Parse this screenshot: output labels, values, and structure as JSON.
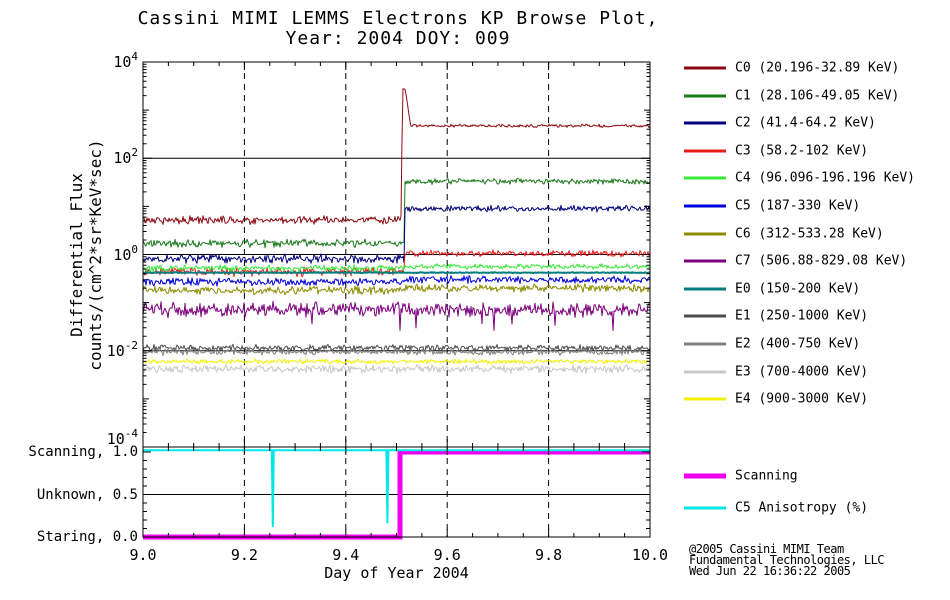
{
  "title": {
    "line1": "Cassini MIMI LEMMS Electrons KP Browse Plot,",
    "line2": "Year: 2004 DOY: 009"
  },
  "axes": {
    "y_label_line1": "Differential Flux",
    "y_label_line2": "counts/(cm^2*sr*KeV*sec)",
    "x_label": "Day of Year 2004",
    "x_ticks": [
      "9.0",
      "9.2",
      "9.4",
      "9.6",
      "9.8",
      "10.0"
    ],
    "y_tick_exponents": [
      4,
      2,
      0,
      -2,
      -4
    ],
    "mode_labels": [
      {
        "text": "Scanning, 1.0",
        "value": 1.0
      },
      {
        "text": "Unknown, 0.5",
        "value": 0.5
      },
      {
        "text": "Staring, 0.0",
        "value": 0.0
      }
    ]
  },
  "legend": {
    "items": [
      {
        "name": "C0",
        "label": "C0 (20.196-32.89 KeV)",
        "color": "#8B0A12"
      },
      {
        "name": "C1",
        "label": "C1 (28.106-49.05 KeV)",
        "color": "#1B7A1B"
      },
      {
        "name": "C2",
        "label": "C2 (41.4-64.2 KeV)",
        "color": "#00007D"
      },
      {
        "name": "C3",
        "label": "C3 (58.2-102 KeV)",
        "color": "#E81C1C"
      },
      {
        "name": "C4",
        "label": "C4 (96.096-196.196 KeV)",
        "color": "#37E837"
      },
      {
        "name": "C5",
        "label": "C5 (187-330 KeV)",
        "color": "#0000DD"
      },
      {
        "name": "C6",
        "label": "C6 (312-533.28 KeV)",
        "color": "#8C8C00"
      },
      {
        "name": "C7",
        "label": "C7 (506.88-829.08 KeV)",
        "color": "#7D007D"
      },
      {
        "name": "E0",
        "label": "E0 (150-200 KeV)",
        "color": "#007D7D"
      },
      {
        "name": "E1",
        "label": "E1 (250-1000 KeV)",
        "color": "#4D4D4D"
      },
      {
        "name": "E2",
        "label": "E2 (400-750 KeV)",
        "color": "#808080"
      },
      {
        "name": "E3",
        "label": "E3 (700-4000 KeV)",
        "color": "#C8C8C8"
      },
      {
        "name": "E4",
        "label": "E4 (900-3000 KeV)",
        "color": "#F2F200"
      }
    ]
  },
  "mode_legend": {
    "items": [
      {
        "name": "scanning",
        "label": "Scanning",
        "color": "#EE00EE",
        "thickness": 5
      },
      {
        "name": "c5-anisotropy",
        "label": "C5 Anisotropy (%)",
        "color": "#00E8E8",
        "thickness": 3
      }
    ]
  },
  "credit": {
    "line1": "@2005 Cassini MIMI Team",
    "line2": "Fundamental Technologies, LLC",
    "line3": "Wed Jun 22 16:36:22 2005"
  },
  "chart_data": {
    "type": "line",
    "title": "Cassini MIMI LEMMS Electrons KP Browse Plot, Year: 2004 DOY: 009",
    "xlabel": "Day of Year 2004",
    "x_range": [
      9.0,
      10.0
    ],
    "x_major_ticks": [
      9.0,
      9.2,
      9.4,
      9.6,
      9.8,
      10.0
    ],
    "x_minor_tick_step": 0.05,
    "grid_v_dashed": [
      9.2,
      9.4,
      9.6,
      9.8
    ],
    "panels": [
      {
        "name": "flux",
        "ylabel": "Differential Flux counts/(cm^2*sr*KeV*sec)",
        "y_scale": "log",
        "y_range": [
          0.0001,
          10000.0
        ],
        "y_labeled_decades": [
          4,
          2,
          0,
          -2,
          -4
        ],
        "grid_h_decades": [
          2,
          0,
          -2
        ],
        "event_step_x": 9.515,
        "series": [
          {
            "name": "C0",
            "energy_kev": "20.196-32.89",
            "color": "#8B0A12",
            "level_before": 5.2,
            "level_after": 470,
            "step_x": 9.515,
            "noise_dex": 0.06,
            "noise_dex_after": 0.025,
            "spike": {
              "x_rise": 9.509,
              "x_peak_start": 9.512,
              "x_peak_end": 9.517,
              "x_end": 9.528,
              "peak": 2700
            }
          },
          {
            "name": "C1",
            "energy_kev": "28.106-49.05",
            "color": "#1B7A1B",
            "level_before": 1.7,
            "level_after": 33,
            "step_x": 9.515,
            "noise_dex": 0.06,
            "noise_dex_after": 0.045
          },
          {
            "name": "C2",
            "energy_kev": "41.4-64.2",
            "color": "#00007D",
            "level_before": 0.82,
            "level_after": 9.0,
            "step_x": 9.515,
            "noise_dex": 0.07,
            "noise_dex_after": 0.045
          },
          {
            "name": "C3",
            "energy_kev": "58.2-102",
            "color": "#E81C1C",
            "level_before": 0.44,
            "level_after": 1.05,
            "step_x": 9.515,
            "noise_dex": 0.07,
            "noise_dex_after": 0.05
          },
          {
            "name": "C4",
            "energy_kev": "96.096-196.196",
            "color": "#37E837",
            "level_before": 0.52,
            "level_after": 0.56,
            "step_x": 9.515,
            "noise_dex": 0.05,
            "noise_dex_after": 0.04
          },
          {
            "name": "C5",
            "energy_kev": "187-330",
            "color": "#0000DD",
            "level_before": 0.27,
            "level_after": 0.3,
            "step_x": 9.515,
            "noise_dex": 0.06,
            "noise_dex_after": 0.06
          },
          {
            "name": "C6",
            "energy_kev": "312-533.28",
            "color": "#8C8C00",
            "level_before": 0.18,
            "level_after": 0.2,
            "step_x": 9.515,
            "noise_dex": 0.06,
            "noise_dex_after": 0.06
          },
          {
            "name": "C7",
            "energy_kev": "506.88-829.08",
            "color": "#7D007D",
            "level_before": 0.072,
            "level_after": 0.07,
            "step_x": 9.515,
            "noise_dex": 0.11,
            "noise_dex_after": 0.11,
            "spiky_down": true
          },
          {
            "name": "E0",
            "energy_kev": "150-200",
            "color": "#007D7D",
            "level": 0.42,
            "noise_dex": 0.006,
            "width": 2
          },
          {
            "name": "E1",
            "energy_kev": "250-1000",
            "color": "#4D4D4D",
            "level": 0.0115,
            "noise_dex": 0.05
          },
          {
            "name": "E2",
            "energy_kev": "400-750",
            "color": "#808080",
            "level": 0.0095,
            "noise_dex": 0.05
          },
          {
            "name": "E3",
            "energy_kev": "700-4000",
            "color": "#C8C8C8",
            "level": 0.0042,
            "noise_dex": 0.06
          },
          {
            "name": "E4",
            "energy_kev": "900-3000",
            "color": "#F2F200",
            "level": 0.006,
            "noise_dex": 0.035
          }
        ]
      },
      {
        "name": "mode",
        "y_scale": "linear",
        "y_range": [
          0.0,
          1.06
        ],
        "y_major_ticks": [
          0.0,
          0.5,
          1.0
        ],
        "y_minor_tick_step": 0.1,
        "grid_h_values": [
          0.5
        ],
        "series": [
          {
            "name": "Scanning",
            "color": "#EE00EE",
            "width": 5,
            "points": [
              [
                9.0,
                0.0
              ],
              [
                9.507,
                0.0
              ],
              [
                9.507,
                1.0
              ],
              [
                10.0,
                1.0
              ]
            ]
          },
          {
            "name": "C5 Anisotropy (%)",
            "color": "#00E8E8",
            "width": 2,
            "level": 1.02,
            "dips": [
              {
                "x": 9.256,
                "low": 0.12
              },
              {
                "x": 9.482,
                "low": 0.16
              }
            ]
          }
        ]
      }
    ]
  }
}
